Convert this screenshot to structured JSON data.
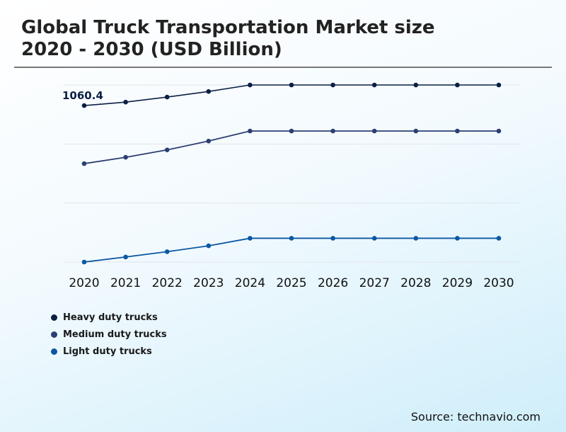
{
  "title_line1": "Global Truck Transportation Market size",
  "title_line2": "2020 - 2030 (USD Billion)",
  "source": "Source: technavio.com",
  "chart_data": {
    "type": "line",
    "title": "Global Truck Transportation Market size 2020 - 2030 (USD Billion)",
    "x": [
      "2020",
      "2021",
      "2022",
      "2023",
      "2024",
      "2025",
      "2026",
      "2027",
      "2028",
      "2029",
      "2030"
    ],
    "ylim": [
      0,
      1200
    ],
    "grid": true,
    "gridlines": [
      0,
      400,
      800,
      1200
    ],
    "legend_placement": "bottom-left",
    "annotations": [
      {
        "series": "Heavy duty trucks",
        "x": "2020",
        "text": "1060.4"
      }
    ],
    "series": [
      {
        "name": "Heavy duty trucks",
        "color": "#0b1f45",
        "values": [
          1060.4,
          1084,
          1118,
          1156,
          1200,
          1200,
          1200,
          1200,
          1200,
          1200,
          1200
        ]
      },
      {
        "name": "Medium duty trucks",
        "color": "#2c3f73",
        "values": [
          667,
          710,
          760,
          820,
          888,
          888,
          888,
          888,
          888,
          888,
          888
        ]
      },
      {
        "name": "Light duty trucks",
        "color": "#0b57a4",
        "values": [
          0,
          34,
          70,
          110,
          161,
          161,
          161,
          161,
          161,
          161,
          161
        ]
      }
    ]
  }
}
